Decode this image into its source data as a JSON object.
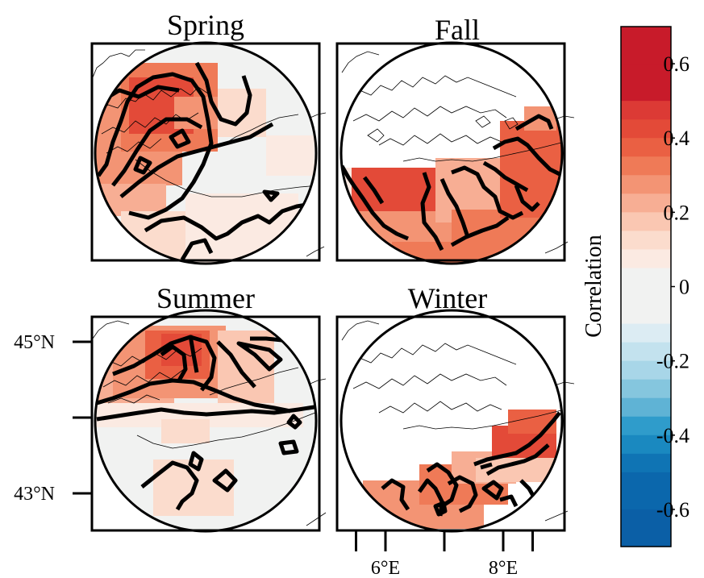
{
  "chart_data": {
    "type": "heatmap",
    "panels": [
      {
        "title": "Spring"
      },
      {
        "title": "Fall"
      },
      {
        "title": "Summer"
      },
      {
        "title": "Winter"
      }
    ],
    "y_ticks": [
      {
        "label": "45°N",
        "lat": 45
      },
      {
        "label": "",
        "lat": 44
      },
      {
        "label": "43°N",
        "lat": 43
      }
    ],
    "x_ticks": [
      {
        "label": "",
        "lon": 5.5
      },
      {
        "label": "6°E",
        "lon": 6
      },
      {
        "label": "",
        "lon": 7
      },
      {
        "label": "8°E",
        "lon": 8
      },
      {
        "label": "",
        "lon": 8.5
      }
    ],
    "colorbar": {
      "label": "Correlation",
      "range": [
        -0.7,
        0.7
      ],
      "ticks": [
        {
          "value": 0.6,
          "label": "0.6"
        },
        {
          "value": 0.4,
          "label": "0.4"
        },
        {
          "value": 0.2,
          "label": "0.2"
        },
        {
          "value": 0,
          "label": "0"
        },
        {
          "value": -0.2,
          "label": "-0.2"
        },
        {
          "value": -0.4,
          "label": "-0.4"
        },
        {
          "value": -0.6,
          "label": "-0.6"
        }
      ],
      "bins": [
        {
          "from": 0.6,
          "to": 0.7,
          "color": "#c81b2a"
        },
        {
          "from": 0.5,
          "to": 0.6,
          "color": "#c81b2a"
        },
        {
          "from": 0.45,
          "to": 0.5,
          "color": "#dc3a35"
        },
        {
          "from": 0.4,
          "to": 0.45,
          "color": "#e34a38"
        },
        {
          "from": 0.35,
          "to": 0.4,
          "color": "#ea6043"
        },
        {
          "from": 0.3,
          "to": 0.35,
          "color": "#ef7a57"
        },
        {
          "from": 0.25,
          "to": 0.3,
          "color": "#f39474"
        },
        {
          "from": 0.2,
          "to": 0.25,
          "color": "#f7ae94"
        },
        {
          "from": 0.15,
          "to": 0.2,
          "color": "#fac7b2"
        },
        {
          "from": 0.1,
          "to": 0.15,
          "color": "#fbdccd"
        },
        {
          "from": 0.05,
          "to": 0.1,
          "color": "#fbeae2"
        },
        {
          "from": -0.1,
          "to": 0.05,
          "color": "#f1f2f1"
        },
        {
          "from": -0.15,
          "to": -0.1,
          "color": "#dcecf3"
        },
        {
          "from": -0.2,
          "to": -0.15,
          "color": "#c3e2ee"
        },
        {
          "from": -0.25,
          "to": -0.2,
          "color": "#a8d6e8"
        },
        {
          "from": -0.3,
          "to": -0.25,
          "color": "#85c6de"
        },
        {
          "from": -0.35,
          "to": -0.3,
          "color": "#5fb3d5"
        },
        {
          "from": -0.4,
          "to": -0.35,
          "color": "#2f9ccb"
        },
        {
          "from": -0.45,
          "to": -0.4,
          "color": "#1a89c0"
        },
        {
          "from": -0.5,
          "to": -0.45,
          "color": "#0f74b4"
        },
        {
          "from": -0.6,
          "to": -0.5,
          "color": "#0b67ac"
        },
        {
          "from": -0.7,
          "to": -0.6,
          "color": "#0b5fa6"
        }
      ]
    }
  }
}
